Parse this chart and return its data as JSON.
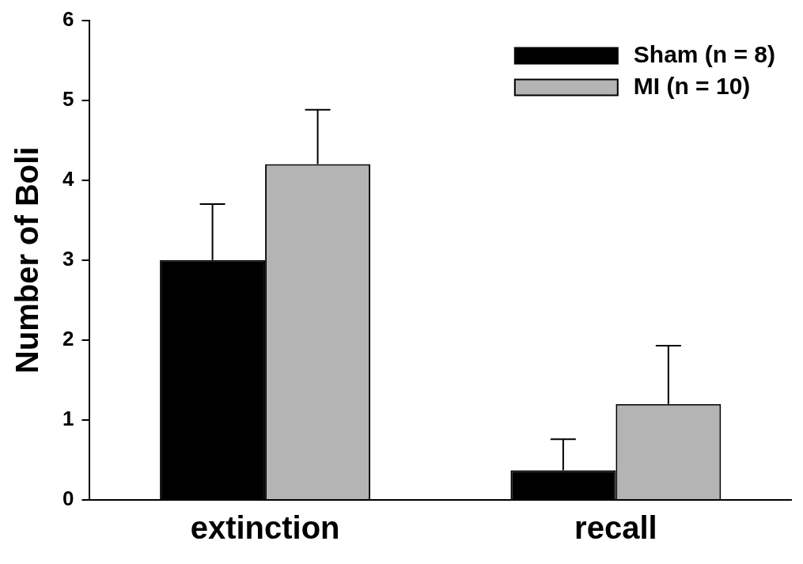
{
  "chart_data": {
    "type": "bar",
    "ylabel": "Number of Boli",
    "categories": [
      "extinction",
      "recall"
    ],
    "series": [
      {
        "name": "Sham (n = 8)",
        "color": "#000000",
        "values": [
          3.0,
          0.37
        ],
        "errors": [
          [
            3.0,
            3.7
          ],
          [
            0.37,
            0.76
          ]
        ]
      },
      {
        "name": "MI (n = 10)",
        "color": "#b4b4b4",
        "values": [
          4.2,
          1.2
        ],
        "errors": [
          [
            4.2,
            4.88
          ],
          [
            1.2,
            1.93
          ]
        ]
      }
    ],
    "ylim": [
      0,
      6
    ],
    "yticks": [
      0,
      1,
      2,
      3,
      4,
      5,
      6
    ],
    "grid": false,
    "legend": "top right"
  }
}
